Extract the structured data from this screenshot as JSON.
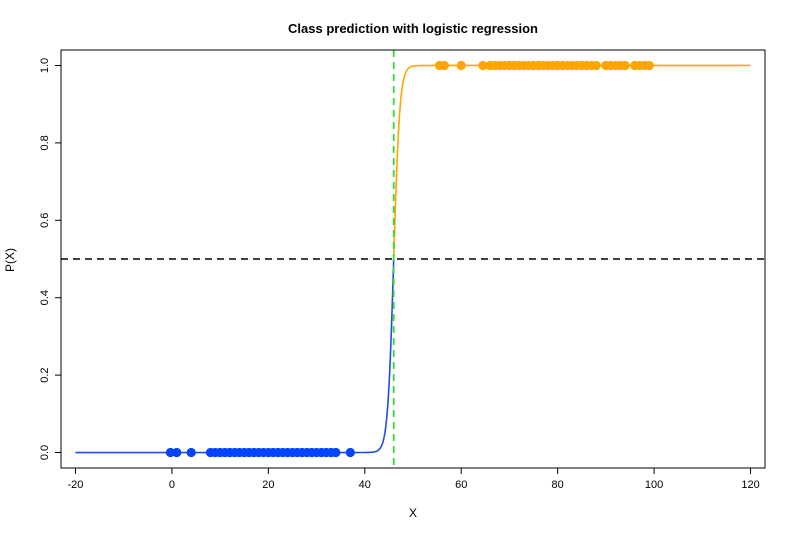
{
  "chart_data": {
    "type": "scatter",
    "title": "Class prediction with logistic regression",
    "xlabel": "X",
    "ylabel": "P(X)",
    "xlim": [
      -23,
      123
    ],
    "ylim": [
      -0.04,
      1.04
    ],
    "x_ticks": [
      -20,
      0,
      20,
      40,
      60,
      80,
      100,
      120
    ],
    "y_ticks": [
      0.0,
      0.2,
      0.4,
      0.6,
      0.8,
      1.0
    ],
    "y_tick_labels": [
      "0.0",
      "0.2",
      "0.4",
      "0.6",
      "0.8",
      "1.0"
    ],
    "grid": false,
    "threshold_y": 0.5,
    "decision_boundary_x": 46,
    "curve": {
      "x_range": [
        -20,
        120
      ],
      "midpoint": 46,
      "steepness": 1.6
    },
    "series": [
      {
        "color": "#1f4fe0",
        "point_color": "#0044ff",
        "y": 0,
        "x": [
          -0.3,
          1,
          4,
          8,
          9,
          10,
          11,
          12,
          13,
          14,
          15,
          16,
          17,
          18,
          19,
          20,
          21,
          22,
          23,
          24,
          25,
          26,
          27,
          28,
          29,
          30,
          31,
          32,
          33,
          34,
          37
        ]
      },
      {
        "color": "#ffa500",
        "point_color": "#ffa500",
        "y": 1,
        "x": [
          55.5,
          56.5,
          60,
          64.5,
          66,
          67,
          68,
          69,
          70,
          71,
          72,
          73,
          74,
          75,
          76,
          77,
          78,
          79,
          80,
          81,
          82,
          83,
          84,
          85,
          86,
          87,
          88,
          90,
          91,
          92,
          93,
          94,
          96,
          97,
          98,
          99
        ]
      }
    ],
    "colors": {
      "threshold_line": "#000000",
      "boundary_line": "#33dd33"
    }
  }
}
